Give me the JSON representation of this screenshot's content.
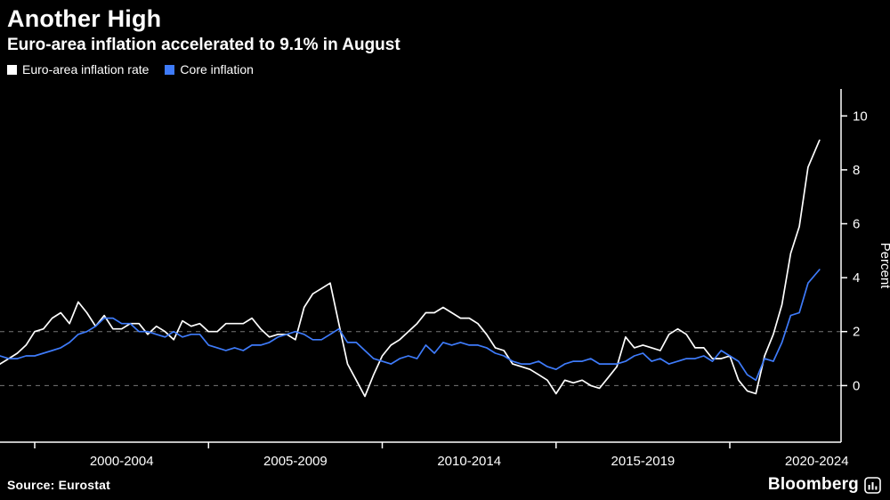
{
  "header": {
    "title": "Another High",
    "subtitle": "Euro-area inflation accelerated to 9.1% in August",
    "legend": [
      {
        "label": "Euro-area inflation rate",
        "color": "#ffffff"
      },
      {
        "label": "Core inflation",
        "color": "#3e7bfa"
      }
    ]
  },
  "footer": {
    "source": "Source: Eurostat",
    "brand": "Bloomberg"
  },
  "colors": {
    "background": "#000000",
    "axis": "#ffffff",
    "gridline": "#777777",
    "headline_line": "#ffffff",
    "core_line": "#3e7bfa"
  },
  "chart_data": {
    "type": "line",
    "title": "Another High",
    "subtitle": "Euro-area inflation accelerated to 9.1% in August",
    "ylabel": "Percent",
    "yticks": [
      0,
      2,
      4,
      6,
      8,
      10
    ],
    "ylim": [
      -2.1,
      11.0
    ],
    "xlim": [
      1999,
      2023.2
    ],
    "x_ticks": [
      2000,
      2005,
      2010,
      2015,
      2020
    ],
    "x_tick_labels": [
      "2000-2004",
      "2005-2009",
      "2010-2014",
      "2015-2019",
      "2020-2024"
    ],
    "gridlines_at": [
      0,
      2
    ],
    "grid": "dashed horizontal at 0 and 2 only",
    "legend_position": "top-left",
    "y_axis_side": "right",
    "x": [
      1999,
      1999.25,
      1999.5,
      1999.75,
      2000,
      2000.25,
      2000.5,
      2000.75,
      2001,
      2001.25,
      2001.5,
      2001.75,
      2002,
      2002.25,
      2002.5,
      2002.75,
      2003,
      2003.25,
      2003.5,
      2003.75,
      2004,
      2004.25,
      2004.5,
      2004.75,
      2005,
      2005.25,
      2005.5,
      2005.75,
      2006,
      2006.25,
      2006.5,
      2006.75,
      2007,
      2007.25,
      2007.5,
      2007.75,
      2008,
      2008.25,
      2008.5,
      2008.75,
      2009,
      2009.25,
      2009.5,
      2009.75,
      2010,
      2010.25,
      2010.5,
      2010.75,
      2011,
      2011.25,
      2011.5,
      2011.75,
      2012,
      2012.25,
      2012.5,
      2012.75,
      2013,
      2013.25,
      2013.5,
      2013.75,
      2014,
      2014.25,
      2014.5,
      2014.75,
      2015,
      2015.25,
      2015.5,
      2015.75,
      2016,
      2016.25,
      2016.5,
      2016.75,
      2017,
      2017.25,
      2017.5,
      2017.75,
      2018,
      2018.25,
      2018.5,
      2018.75,
      2019,
      2019.25,
      2019.5,
      2019.75,
      2020,
      2020.25,
      2020.5,
      2020.75,
      2021,
      2021.25,
      2021.5,
      2021.75,
      2022,
      2022.25,
      2022.58
    ],
    "series": [
      {
        "name": "Euro-area inflation rate",
        "color": "#ffffff",
        "values": [
          0.8,
          1.0,
          1.2,
          1.5,
          2.0,
          2.1,
          2.5,
          2.7,
          2.3,
          3.1,
          2.7,
          2.2,
          2.6,
          2.1,
          2.1,
          2.3,
          2.3,
          1.9,
          2.2,
          2.0,
          1.7,
          2.4,
          2.2,
          2.3,
          2.0,
          2.0,
          2.3,
          2.3,
          2.3,
          2.5,
          2.1,
          1.8,
          1.9,
          1.9,
          1.7,
          2.9,
          3.4,
          3.6,
          3.8,
          2.3,
          0.8,
          0.2,
          -0.4,
          0.4,
          1.1,
          1.5,
          1.7,
          2.0,
          2.3,
          2.7,
          2.7,
          2.9,
          2.7,
          2.5,
          2.5,
          2.3,
          1.9,
          1.4,
          1.3,
          0.8,
          0.7,
          0.6,
          0.4,
          0.2,
          -0.3,
          0.2,
          0.1,
          0.2,
          0.0,
          -0.1,
          0.3,
          0.7,
          1.8,
          1.4,
          1.5,
          1.4,
          1.3,
          1.9,
          2.1,
          1.9,
          1.4,
          1.4,
          1.0,
          1.0,
          1.1,
          0.2,
          -0.2,
          -0.3,
          1.1,
          1.9,
          3.0,
          4.9,
          5.9,
          8.1,
          9.1
        ]
      },
      {
        "name": "Core inflation",
        "color": "#3e7bfa",
        "values": [
          1.1,
          1.0,
          1.0,
          1.1,
          1.1,
          1.2,
          1.3,
          1.4,
          1.6,
          1.9,
          2.0,
          2.2,
          2.5,
          2.5,
          2.3,
          2.3,
          2.0,
          2.0,
          1.9,
          1.8,
          2.0,
          1.8,
          1.9,
          1.9,
          1.5,
          1.4,
          1.3,
          1.4,
          1.3,
          1.5,
          1.5,
          1.6,
          1.8,
          1.9,
          2.0,
          1.9,
          1.7,
          1.7,
          1.9,
          2.1,
          1.6,
          1.6,
          1.3,
          1.0,
          0.9,
          0.8,
          1.0,
          1.1,
          1.0,
          1.5,
          1.2,
          1.6,
          1.5,
          1.6,
          1.5,
          1.5,
          1.4,
          1.2,
          1.1,
          0.9,
          0.8,
          0.8,
          0.9,
          0.7,
          0.6,
          0.8,
          0.9,
          0.9,
          1.0,
          0.8,
          0.8,
          0.8,
          0.9,
          1.1,
          1.2,
          0.9,
          1.0,
          0.8,
          0.9,
          1.0,
          1.0,
          1.1,
          0.9,
          1.3,
          1.1,
          0.9,
          0.4,
          0.2,
          1.0,
          0.9,
          1.6,
          2.6,
          2.7,
          3.8,
          4.3
        ]
      }
    ]
  }
}
